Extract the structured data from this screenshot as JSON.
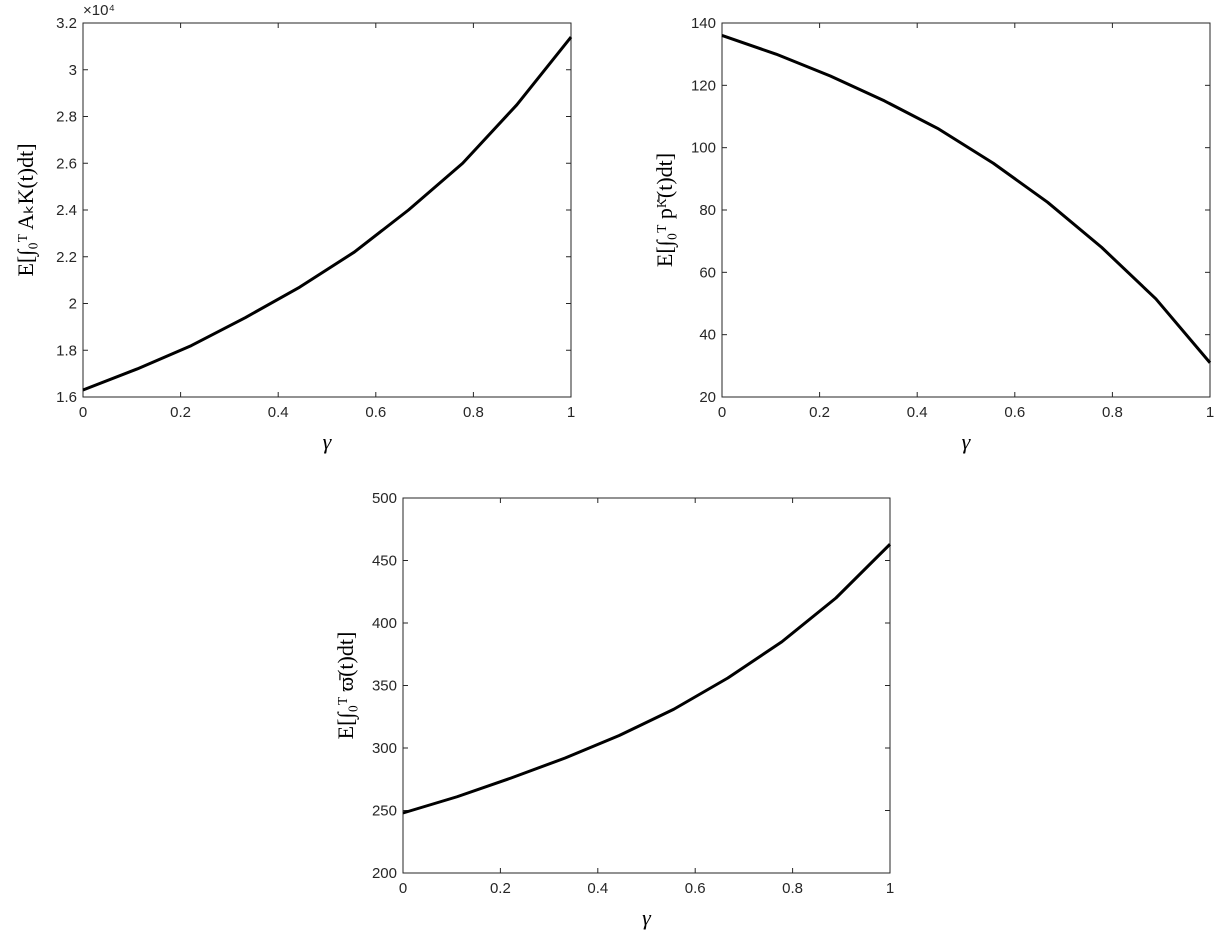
{
  "chart_data": [
    {
      "type": "line",
      "xlabel": "γ",
      "ylabel": "E[∫₀ᵀ AₖK(t)dt]",
      "y_exponent_label": "×10⁴",
      "x": [
        0,
        0.111,
        0.222,
        0.333,
        0.444,
        0.556,
        0.667,
        0.778,
        0.889,
        1
      ],
      "values": [
        1.63,
        1.72,
        1.82,
        1.94,
        2.07,
        2.22,
        2.4,
        2.6,
        2.85,
        3.14
      ],
      "color": "#000000",
      "xlim": [
        0,
        1
      ],
      "xticks": [
        0,
        0.2,
        0.4,
        0.6,
        0.8,
        1
      ],
      "ylim": [
        1.6,
        3.2
      ],
      "yticks": [
        1.6,
        1.8,
        2,
        2.2,
        2.4,
        2.6,
        2.8,
        3,
        3.2
      ]
    },
    {
      "type": "line",
      "xlabel": "γ",
      "ylabel": "E[∫₀ᵀ pᴷ̄(t)dt]",
      "x": [
        0,
        0.111,
        0.222,
        0.333,
        0.444,
        0.556,
        0.667,
        0.778,
        0.889,
        1
      ],
      "values": [
        136,
        130,
        123,
        115,
        106,
        95,
        82.5,
        68,
        51.5,
        31
      ],
      "color": "#000000",
      "xlim": [
        0,
        1
      ],
      "xticks": [
        0,
        0.2,
        0.4,
        0.6,
        0.8,
        1
      ],
      "ylim": [
        20,
        140
      ],
      "yticks": [
        20,
        40,
        60,
        80,
        100,
        120,
        140
      ]
    },
    {
      "type": "line",
      "xlabel": "γ",
      "ylabel": "E[∫₀ᵀ ϖ̄(t)dt]",
      "x": [
        0,
        0.111,
        0.222,
        0.333,
        0.444,
        0.556,
        0.667,
        0.778,
        0.889,
        1
      ],
      "values": [
        248,
        261,
        276,
        292,
        310,
        331,
        356,
        385,
        420,
        463
      ],
      "color": "#000000",
      "xlim": [
        0,
        1
      ],
      "xticks": [
        0,
        0.2,
        0.4,
        0.6,
        0.8,
        1
      ],
      "ylim": [
        200,
        500
      ],
      "yticks": [
        200,
        250,
        300,
        350,
        400,
        450,
        500
      ]
    }
  ]
}
